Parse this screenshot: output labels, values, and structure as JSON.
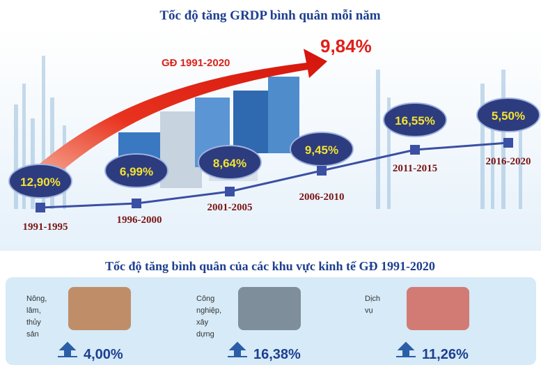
{
  "header": {
    "title": "Tốc độ tăng GRDP bình quân mỗi năm"
  },
  "trend": {
    "label": "GĐ 1991-2020",
    "value": "9,84%"
  },
  "periods": [
    {
      "label": "1991-1995",
      "value": "12,90%"
    },
    {
      "label": "1996-2000",
      "value": "6,99%"
    },
    {
      "label": "2001-2005",
      "value": "8,64%"
    },
    {
      "label": "2006-2010",
      "value": "9,45%"
    },
    {
      "label": "2011-2015",
      "value": "16,55%"
    },
    {
      "label": "2016-2020",
      "value": "5,50%"
    }
  ],
  "sectors_title": "Tốc độ tăng bình quân của các khu vực kinh tế GĐ 1991-2020",
  "sectors": [
    {
      "label_lines": [
        "Nông,",
        "lâm,",
        "thủy",
        "sản"
      ],
      "value": "4,00%"
    },
    {
      "label_lines": [
        "Công",
        "nghiệp,",
        "xây",
        "dựng"
      ],
      "value": "16,38%"
    },
    {
      "label_lines": [
        "Dịch",
        "vụ"
      ],
      "value": "11,26%"
    }
  ]
}
